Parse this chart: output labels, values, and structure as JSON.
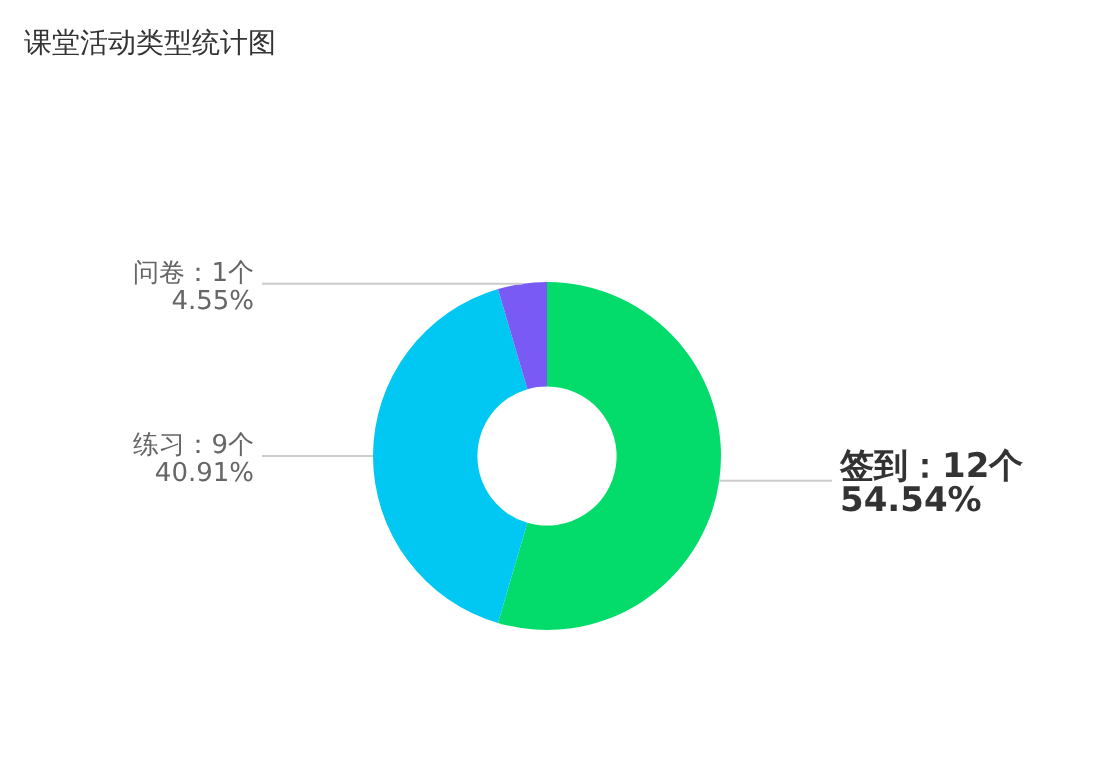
{
  "chart_data": {
    "type": "donut",
    "title": "课堂活动类型统计图",
    "categories": [
      "签到",
      "练习",
      "问卷"
    ],
    "values": [
      12,
      9,
      1
    ],
    "colors": [
      "#03dc6b",
      "#00c8f2",
      "#7a5af5"
    ],
    "value_labels": [
      "12个\n54.54%",
      "9个\n40.91%",
      "1个\n4.55%"
    ],
    "legend": false
  }
}
